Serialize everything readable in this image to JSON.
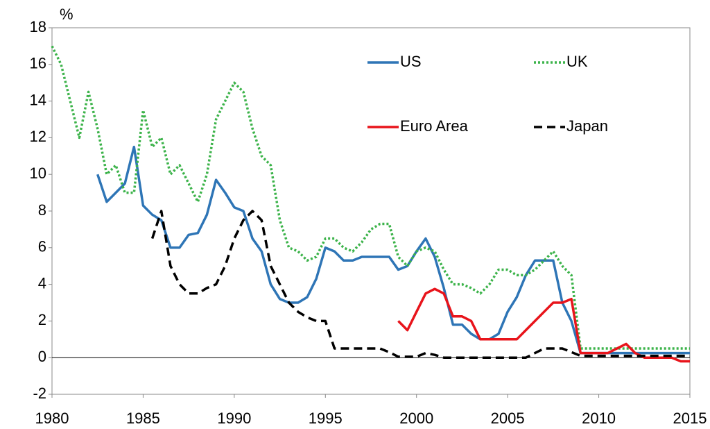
{
  "chart_data": {
    "type": "line",
    "y_label": "%",
    "x": [
      1980,
      1980.5,
      1981,
      1981.5,
      1982,
      1982.5,
      1983,
      1983.5,
      1984,
      1984.5,
      1985,
      1985.5,
      1986,
      1986.5,
      1987,
      1987.5,
      1988,
      1988.5,
      1989,
      1989.5,
      1990,
      1990.5,
      1991,
      1991.5,
      1992,
      1992.5,
      1993,
      1993.5,
      1994,
      1994.5,
      1995,
      1995.5,
      1996,
      1996.5,
      1997,
      1997.5,
      1998,
      1998.5,
      1999,
      1999.5,
      2000,
      2000.5,
      2001,
      2001.5,
      2002,
      2002.5,
      2003,
      2003.5,
      2004,
      2004.5,
      2005,
      2005.5,
      2006,
      2006.5,
      2007,
      2007.5,
      2008,
      2008.5,
      2009,
      2009.5,
      2010,
      2010.5,
      2011,
      2011.5,
      2012,
      2012.5,
      2013,
      2013.5,
      2014,
      2014.5,
      2015
    ],
    "series": [
      {
        "name": "US",
        "color": "#2e75b6",
        "dash": "solid",
        "values": [
          null,
          null,
          null,
          null,
          null,
          10.0,
          8.5,
          9.0,
          9.5,
          11.5,
          8.3,
          7.8,
          7.5,
          6.0,
          6.0,
          6.7,
          6.8,
          7.8,
          9.7,
          9.0,
          8.2,
          8.0,
          6.5,
          5.8,
          4.0,
          3.2,
          3.0,
          3.0,
          3.3,
          4.3,
          6.0,
          5.8,
          5.3,
          5.3,
          5.5,
          5.5,
          5.5,
          5.5,
          4.8,
          5.0,
          5.8,
          6.5,
          5.5,
          3.8,
          1.8,
          1.8,
          1.3,
          1.0,
          1.0,
          1.3,
          2.5,
          3.3,
          4.5,
          5.3,
          5.3,
          5.3,
          3.0,
          2.0,
          0.25,
          0.25,
          0.25,
          0.25,
          0.25,
          0.25,
          0.25,
          0.25,
          0.25,
          0.25,
          0.25,
          0.25,
          0.25
        ]
      },
      {
        "name": "UK",
        "color": "#3cb34a",
        "dash": "dotted",
        "values": [
          17,
          16,
          14,
          12,
          14.5,
          12.5,
          10,
          10.5,
          9,
          9,
          13.5,
          11.5,
          12,
          10,
          10.5,
          9.5,
          8.5,
          10,
          13,
          14,
          15,
          14.5,
          12.5,
          11,
          10.5,
          7.5,
          6,
          5.8,
          5.3,
          5.5,
          6.5,
          6.5,
          6,
          5.8,
          6.3,
          7,
          7.3,
          7.3,
          5.5,
          5.0,
          5.8,
          6.0,
          5.8,
          4.8,
          4.0,
          4.0,
          3.8,
          3.5,
          4.0,
          4.8,
          4.8,
          4.5,
          4.5,
          4.8,
          5.3,
          5.8,
          5.0,
          4.5,
          0.5,
          0.5,
          0.5,
          0.5,
          0.5,
          0.5,
          0.5,
          0.5,
          0.5,
          0.5,
          0.5,
          0.5,
          0.5
        ]
      },
      {
        "name": "Euro Area",
        "color": "#e8141b",
        "dash": "solid",
        "values": [
          null,
          null,
          null,
          null,
          null,
          null,
          null,
          null,
          null,
          null,
          null,
          null,
          null,
          null,
          null,
          null,
          null,
          null,
          null,
          null,
          null,
          null,
          null,
          null,
          null,
          null,
          null,
          null,
          null,
          null,
          null,
          null,
          null,
          null,
          null,
          null,
          null,
          null,
          2.0,
          1.5,
          2.5,
          3.5,
          3.75,
          3.5,
          2.25,
          2.25,
          2.0,
          1.0,
          1.0,
          1.0,
          1.0,
          1.0,
          1.5,
          2.0,
          2.5,
          3.0,
          3.0,
          3.2,
          0.25,
          0.25,
          0.25,
          0.25,
          0.5,
          0.75,
          0.25,
          0.0,
          0,
          0,
          0,
          -0.2,
          -0.2
        ]
      },
      {
        "name": "Japan",
        "color": "#000000",
        "dash": "dashed",
        "values": [
          null,
          null,
          null,
          null,
          null,
          null,
          null,
          null,
          null,
          null,
          null,
          6.5,
          8.0,
          5.0,
          4.0,
          3.5,
          3.5,
          3.8,
          4.0,
          5.0,
          6.5,
          7.5,
          8.0,
          7.5,
          5.0,
          4.0,
          3.0,
          2.5,
          2.2,
          2.0,
          2.0,
          0.5,
          0.5,
          0.5,
          0.5,
          0.5,
          0.5,
          0.3,
          0.05,
          0.05,
          0.05,
          0.25,
          0.15,
          0.0,
          0,
          0,
          0,
          0,
          0,
          0,
          0,
          0,
          0.0,
          0.25,
          0.5,
          0.5,
          0.5,
          0.3,
          0.1,
          0.1,
          0.1,
          0.1,
          0.1,
          0.1,
          0.1,
          0.1,
          0.1,
          0.1,
          0.1,
          0.1,
          0.1
        ]
      }
    ],
    "xlim": [
      1980,
      2015
    ],
    "xticks": [
      1980,
      1985,
      1990,
      1995,
      2000,
      2005,
      2010,
      2015
    ],
    "ylim": [
      -2,
      18
    ],
    "yticks": [
      -2,
      0,
      2,
      4,
      6,
      8,
      10,
      12,
      14,
      16,
      18
    ],
    "grid": false,
    "legend": "top-right"
  }
}
